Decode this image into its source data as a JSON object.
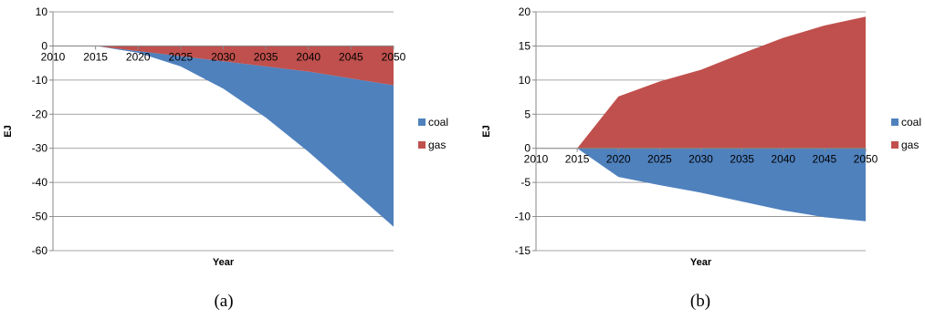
{
  "charts": [
    {
      "caption": "(a)"
    },
    {
      "caption": "(b)"
    }
  ],
  "chart_data": [
    {
      "type": "area",
      "title": "",
      "xlabel": "Year",
      "ylabel": "EJ",
      "x": [
        2015,
        2020,
        2025,
        2030,
        2035,
        2040,
        2045,
        2050
      ],
      "x_ticks": [
        "2010",
        "2015",
        "2020",
        "2025",
        "2030",
        "2035",
        "2040",
        "2045",
        "2050"
      ],
      "xlim": [
        2010,
        2050
      ],
      "ylim": [
        -60,
        10
      ],
      "y_ticks": [
        10,
        0,
        -10,
        -20,
        -30,
        -40,
        -50,
        -60
      ],
      "grid": true,
      "legend_position": "right",
      "series": [
        {
          "name": "coal",
          "color": "#4f81bd",
          "values": [
            0,
            -2,
            -6,
            -12.5,
            -21,
            -31,
            -42,
            -53
          ]
        },
        {
          "name": "gas",
          "color": "#c0504d",
          "values": [
            0,
            -1.5,
            -3,
            -4.5,
            -6,
            -7.5,
            -9.5,
            -11.5
          ]
        }
      ]
    },
    {
      "type": "area",
      "title": "",
      "xlabel": "Year",
      "ylabel": "EJ",
      "x": [
        2015,
        2020,
        2025,
        2030,
        2035,
        2040,
        2045,
        2050
      ],
      "x_ticks": [
        "2010",
        "2015",
        "2020",
        "2025",
        "2030",
        "2035",
        "2040",
        "2045",
        "2050"
      ],
      "xlim": [
        2010,
        2050
      ],
      "ylim": [
        -15,
        20
      ],
      "y_ticks": [
        20,
        15,
        10,
        5,
        0,
        -5,
        -10,
        -15
      ],
      "grid": true,
      "legend_position": "right",
      "series": [
        {
          "name": "coal",
          "color": "#4f81bd",
          "values": [
            0,
            -4.2,
            -5.4,
            -6.5,
            -7.8,
            -9.1,
            -10.1,
            -10.7
          ]
        },
        {
          "name": "gas",
          "color": "#c0504d",
          "values": [
            0,
            7.6,
            9.8,
            11.5,
            13.9,
            16.2,
            18.0,
            19.3
          ]
        }
      ]
    }
  ]
}
